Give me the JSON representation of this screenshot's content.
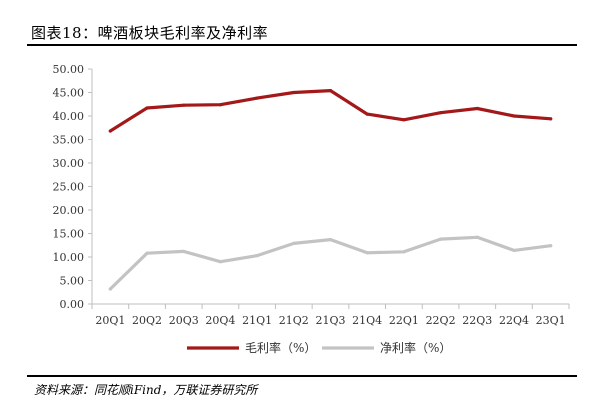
{
  "figure": {
    "title": "图表18：啤酒板块毛利率及净利率",
    "source": "资料来源：同花顺iFind，万联证券研究所"
  },
  "colors": {
    "gross_margin": "#A31818",
    "net_margin": "#C3C3C3",
    "axis": "#bfbfbf",
    "text": "#333333"
  },
  "chart_data": {
    "type": "line",
    "title": "",
    "xlabel": "",
    "ylabel": "",
    "ylim": [
      0,
      50
    ],
    "yticks": [
      "0.00",
      "5.00",
      "10.00",
      "15.00",
      "20.00",
      "25.00",
      "30.00",
      "35.00",
      "40.00",
      "45.00",
      "50.00"
    ],
    "grid": false,
    "legend": "bottom",
    "categories": [
      "20Q1",
      "20Q2",
      "20Q3",
      "20Q4",
      "21Q1",
      "21Q2",
      "21Q3",
      "21Q4",
      "22Q1",
      "22Q2",
      "22Q3",
      "22Q4",
      "23Q1"
    ],
    "series": [
      {
        "name": "毛利率（%）",
        "values": [
          36.8,
          41.7,
          42.3,
          42.4,
          43.8,
          45.0,
          45.4,
          40.4,
          39.2,
          40.7,
          41.6,
          40.0,
          39.4
        ]
      },
      {
        "name": "净利率（%）",
        "values": [
          3.2,
          10.8,
          11.2,
          9.0,
          10.3,
          12.9,
          13.7,
          10.9,
          11.1,
          13.8,
          14.2,
          11.4,
          12.4
        ]
      }
    ]
  }
}
